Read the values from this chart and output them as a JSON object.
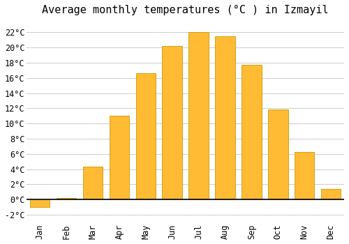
{
  "title": "Average monthly temperatures (°C ) in Izmayil",
  "months": [
    "Jan",
    "Feb",
    "Mar",
    "Apr",
    "May",
    "Jun",
    "Jul",
    "Aug",
    "Sep",
    "Oct",
    "Nov",
    "Dec"
  ],
  "values": [
    -1.0,
    0.2,
    4.3,
    11.0,
    16.6,
    20.2,
    22.0,
    21.5,
    17.7,
    11.9,
    6.3,
    1.4
  ],
  "bar_color": "#FFBB33",
  "bar_edge_color": "#CC9900",
  "background_color": "#FFFFFF",
  "plot_bg_color": "#FFFFFF",
  "grid_color": "#CCCCCC",
  "ylim": [
    -3,
    23.5
  ],
  "yticks": [
    -2,
    0,
    2,
    4,
    6,
    8,
    10,
    12,
    14,
    16,
    18,
    20,
    22
  ],
  "title_fontsize": 11,
  "tick_fontsize": 8.5,
  "font_family": "monospace",
  "bar_width": 0.75
}
